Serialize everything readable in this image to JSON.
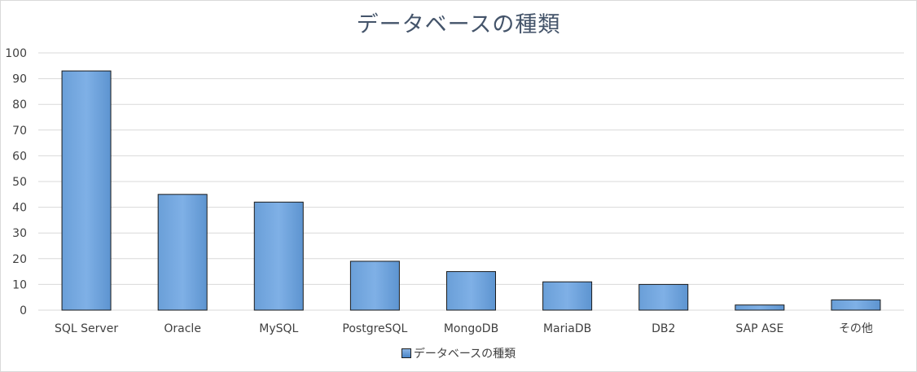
{
  "chart_data": {
    "type": "bar",
    "title": "データベースの種類",
    "categories": [
      "SQL Server",
      "Oracle",
      "MySQL",
      "PostgreSQL",
      "MongoDB",
      "MariaDB",
      "DB2",
      "SAP ASE",
      "その他"
    ],
    "series": [
      {
        "name": "データベースの種類",
        "values": [
          93,
          45,
          42,
          19,
          15,
          11,
          10,
          2,
          4
        ]
      }
    ],
    "y_ticks": [
      "0",
      "10",
      "20",
      "30",
      "40",
      "50",
      "60",
      "70",
      "80",
      "90",
      "100"
    ],
    "ylim": [
      0,
      100
    ],
    "grid": true,
    "legend_position": "bottom",
    "colors": {
      "bar_top": "#8ab4e4",
      "bar_bottom": "#4a86c8",
      "bar_edge": "#1a1a1a",
      "grid": "#d9d9d9",
      "title": "#44546a",
      "text": "#404040"
    }
  }
}
